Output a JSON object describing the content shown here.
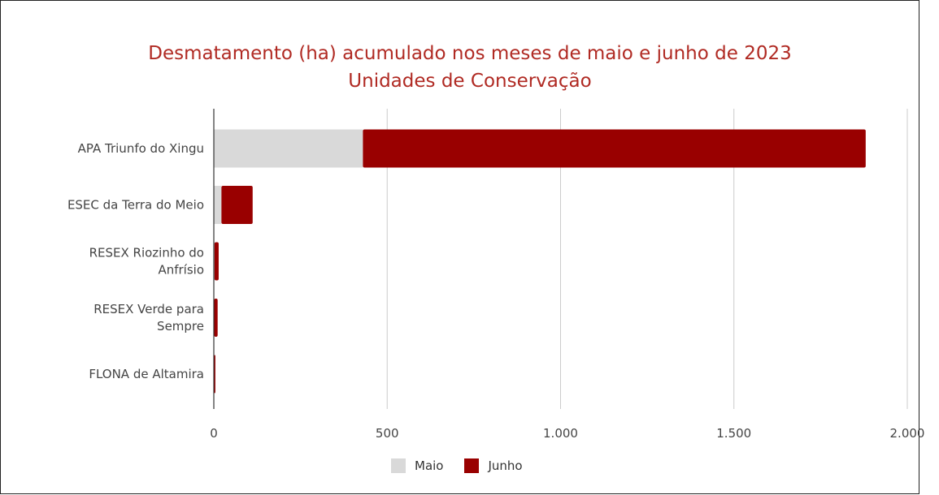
{
  "chart_data": {
    "type": "bar",
    "orientation": "horizontal",
    "stacked": true,
    "title_lines": [
      "Desmatamento (ha) acumulado nos meses de maio e junho de 2023",
      "Unidades de Conservação"
    ],
    "categories": [
      [
        "APA Triunfo do Xingu"
      ],
      [
        "ESEC da Terra do Meio"
      ],
      [
        "RESEX Riozinho do",
        "Anfrísio"
      ],
      [
        "RESEX Verde para",
        "Sempre"
      ],
      [
        "FLONA de Altamira"
      ]
    ],
    "series": [
      {
        "name": "Maio",
        "color": "#d9d9d9",
        "values": [
          430,
          22,
          2,
          1,
          0.5
        ]
      },
      {
        "name": "Junho",
        "color": "#990000",
        "values": [
          1450,
          90,
          12,
          10,
          4
        ]
      }
    ],
    "xlim": [
      0,
      2000
    ],
    "xticks": [
      {
        "value": 0,
        "label": "0"
      },
      {
        "value": 500,
        "label": "500"
      },
      {
        "value": 1000,
        "label": "1.000"
      },
      {
        "value": 1500,
        "label": "1.500"
      },
      {
        "value": 2000,
        "label": "2.000"
      }
    ],
    "grid": true,
    "legend_position": "bottom"
  }
}
